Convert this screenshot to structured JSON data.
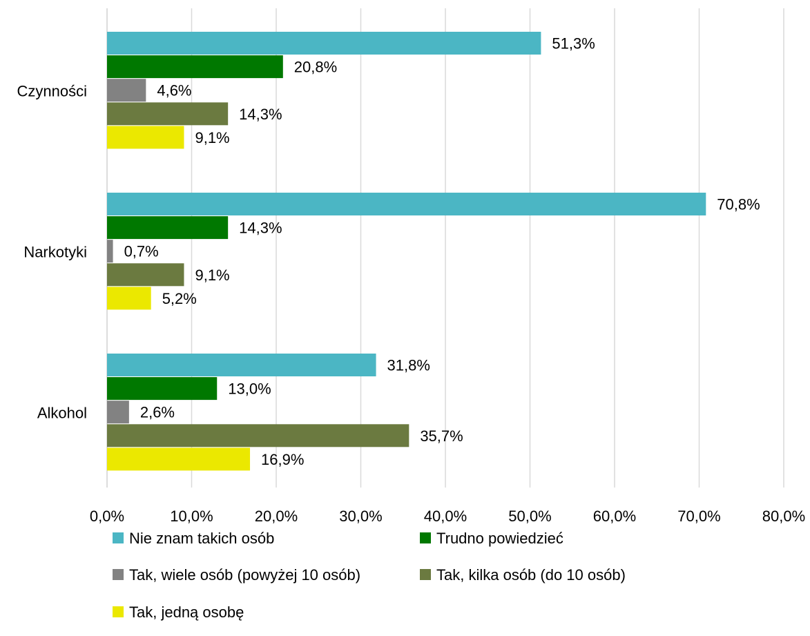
{
  "chart_data": {
    "type": "bar",
    "orientation": "horizontal",
    "categories": [
      "Czynności",
      "Narkotyki",
      "Alkohol"
    ],
    "series": [
      {
        "name": "Nie znam takich osób",
        "color": "#4bb6c4",
        "values": [
          51.3,
          70.8,
          31.8
        ],
        "labels": [
          "51,3%",
          "70,8%",
          "31,8%"
        ]
      },
      {
        "name": "Trudno powiedzieć",
        "color": "#007800",
        "values": [
          20.8,
          14.3,
          13.0
        ],
        "labels": [
          "20,8%",
          "14,3%",
          "13,0%"
        ]
      },
      {
        "name": "Tak, wiele osób (powyżej 10 osób)",
        "color": "#828282",
        "values": [
          4.6,
          0.7,
          2.6
        ],
        "labels": [
          "4,6%",
          "0,7%",
          "2,6%"
        ]
      },
      {
        "name": "Tak, kilka osób (do 10 osób)",
        "color": "#6b7a40",
        "values": [
          14.3,
          9.1,
          35.7
        ],
        "labels": [
          "14,3%",
          "9,1%",
          "35,7%"
        ]
      },
      {
        "name": "Tak, jedną osobę",
        "color": "#ebe800",
        "values": [
          9.1,
          5.2,
          16.9
        ],
        "labels": [
          "9,1%",
          "5,2%",
          "16,9%"
        ]
      }
    ],
    "x_ticks": [
      "0,0%",
      "10,0%",
      "20,0%",
      "30,0%",
      "40,0%",
      "50,0%",
      "60,0%",
      "70,0%",
      "80,0%"
    ],
    "xlim": [
      0,
      80
    ],
    "grid": true,
    "legend_position": "bottom",
    "title": "",
    "xlabel": "",
    "ylabel": ""
  }
}
